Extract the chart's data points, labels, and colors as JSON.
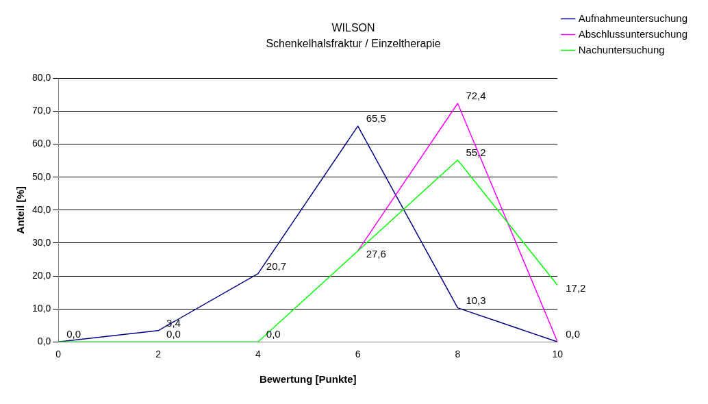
{
  "chart_data": {
    "type": "line",
    "title": "WILSON",
    "subtitle": "Schenkelhalsfraktur / Einzeltherapie",
    "xlabel": "Bewertung [Punkte]",
    "ylabel": "Anteil [%]",
    "x": [
      0,
      2,
      4,
      6,
      8,
      10
    ],
    "series": [
      {
        "name": "Aufnahmeuntersuchung",
        "color": "#000080",
        "values": [
          0.0,
          3.4,
          20.7,
          65.5,
          10.3,
          0.0
        ],
        "value_labels": [
          "0,0",
          "3,4",
          "20,7",
          "65,5",
          "10,3",
          "0,0"
        ]
      },
      {
        "name": "Abschlussuntersuchung",
        "color": "#ff00ff",
        "values": [
          null,
          null,
          null,
          27.6,
          72.4,
          0.0
        ],
        "value_labels": [
          null,
          null,
          null,
          null,
          "72,4",
          null
        ]
      },
      {
        "name": "Nachuntersuchung",
        "color": "#00ff00",
        "values": [
          0.0,
          0.0,
          0.0,
          27.6,
          55.2,
          17.2
        ],
        "value_labels": [
          null,
          "0,0",
          "0,0",
          "27,6",
          "55,2",
          "17,2"
        ]
      }
    ],
    "xlim": [
      0,
      10
    ],
    "xticks": [
      0,
      2,
      4,
      6,
      8,
      10
    ],
    "ylim": [
      0,
      80
    ],
    "yticks": [
      {
        "value": 0,
        "label": "0,0"
      },
      {
        "value": 10,
        "label": "10,0"
      },
      {
        "value": 20,
        "label": "20,0"
      },
      {
        "value": 30,
        "label": "30,0"
      },
      {
        "value": 40,
        "label": "40,0"
      },
      {
        "value": 50,
        "label": "50,0"
      },
      {
        "value": 60,
        "label": "60,0"
      },
      {
        "value": 70,
        "label": "70,0"
      },
      {
        "value": 80,
        "label": "80,0"
      }
    ],
    "grid": "y",
    "legend": "top right",
    "marker": "none",
    "line_style": "solid"
  }
}
